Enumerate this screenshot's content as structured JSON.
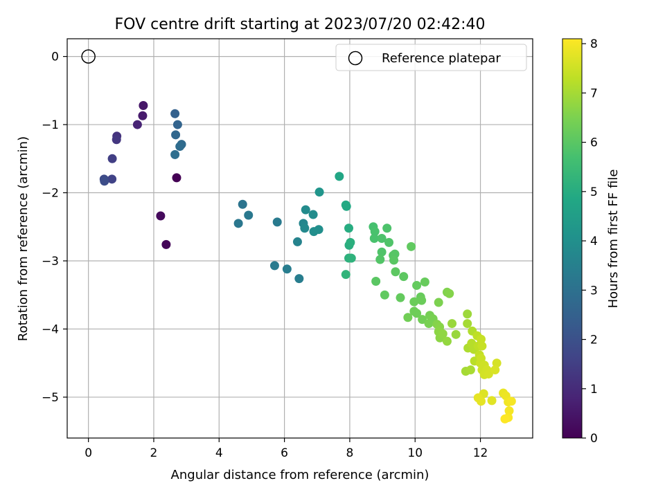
{
  "chart_data": {
    "type": "scatter",
    "title": "FOV centre drift starting at 2023/07/20 02:42:40",
    "xlabel": "Angular distance from reference (arcmin)",
    "ylabel": "Rotation from reference (arcmin)",
    "xlim": [
      -0.65,
      13.6
    ],
    "ylim": [
      -5.6,
      0.26
    ],
    "xticks": [
      0,
      2,
      4,
      6,
      8,
      10,
      12
    ],
    "yticks": [
      0,
      -1,
      -2,
      -3,
      -4,
      -5
    ],
    "grid": true,
    "legend": {
      "placement": "top-right",
      "entries": [
        "Reference platepar"
      ]
    },
    "reference_point": {
      "x": 0,
      "y": 0,
      "label": "Reference platepar"
    },
    "colorbar": {
      "label": "Hours from first FF file",
      "colormap": "viridis",
      "range": [
        0,
        8.1
      ],
      "ticks": [
        0,
        1,
        2,
        3,
        4,
        5,
        6,
        7,
        8
      ]
    },
    "series": [
      {
        "points": [
          [
            2.7,
            -1.78,
            0.0
          ],
          [
            2.38,
            -2.76,
            0.1
          ],
          [
            2.21,
            -2.34,
            0.2
          ],
          [
            1.68,
            -0.72,
            0.5
          ],
          [
            1.66,
            -0.87,
            0.6
          ],
          [
            1.5,
            -1.0,
            0.8
          ],
          [
            0.87,
            -1.17,
            1.2
          ],
          [
            0.86,
            -1.22,
            1.3
          ],
          [
            0.73,
            -1.5,
            1.5
          ],
          [
            0.72,
            -1.8,
            1.6
          ],
          [
            0.48,
            -1.8,
            1.8
          ],
          [
            0.49,
            -1.83,
            1.9
          ],
          [
            2.65,
            -0.84,
            2.5
          ],
          [
            2.73,
            -1.0,
            2.6
          ],
          [
            2.67,
            -1.15,
            2.7
          ],
          [
            2.85,
            -1.29,
            2.8
          ],
          [
            2.8,
            -1.32,
            2.85
          ],
          [
            2.65,
            -1.44,
            2.9
          ],
          [
            4.72,
            -2.17,
            3.1
          ],
          [
            4.59,
            -2.45,
            3.2
          ],
          [
            4.9,
            -2.33,
            3.25
          ],
          [
            5.78,
            -2.43,
            3.3
          ],
          [
            5.7,
            -3.07,
            3.3
          ],
          [
            6.08,
            -3.12,
            3.4
          ],
          [
            6.45,
            -3.26,
            3.4
          ],
          [
            6.4,
            -2.72,
            3.6
          ],
          [
            6.58,
            -2.45,
            3.7
          ],
          [
            6.62,
            -2.52,
            3.8
          ],
          [
            6.65,
            -2.25,
            3.85
          ],
          [
            6.88,
            -2.32,
            3.9
          ],
          [
            6.9,
            -2.57,
            3.95
          ],
          [
            7.05,
            -2.54,
            4.0
          ],
          [
            7.07,
            -1.99,
            4.2
          ],
          [
            7.68,
            -1.76,
            4.8
          ],
          [
            7.9,
            -2.2,
            4.85
          ],
          [
            7.88,
            -2.18,
            4.9
          ],
          [
            7.97,
            -2.52,
            5.0
          ],
          [
            7.98,
            -2.77,
            5.05
          ],
          [
            8.02,
            -2.73,
            5.1
          ],
          [
            7.97,
            -2.96,
            5.15
          ],
          [
            8.05,
            -2.96,
            5.2
          ],
          [
            7.88,
            -3.2,
            5.25
          ],
          [
            8.72,
            -2.5,
            5.7
          ],
          [
            8.77,
            -2.57,
            5.75
          ],
          [
            8.75,
            -2.67,
            5.75
          ],
          [
            8.98,
            -2.67,
            5.8
          ],
          [
            9.14,
            -2.52,
            5.8
          ],
          [
            9.2,
            -2.73,
            5.85
          ],
          [
            8.98,
            -2.87,
            5.85
          ],
          [
            8.93,
            -2.98,
            5.9
          ],
          [
            9.33,
            -2.92,
            5.95
          ],
          [
            9.38,
            -2.9,
            5.95
          ],
          [
            9.35,
            -2.99,
            6.0
          ],
          [
            8.8,
            -3.3,
            6.0
          ],
          [
            9.4,
            -3.16,
            6.05
          ],
          [
            9.65,
            -3.23,
            6.05
          ],
          [
            9.88,
            -2.79,
            6.1
          ],
          [
            9.07,
            -3.5,
            6.1
          ],
          [
            9.55,
            -3.54,
            6.15
          ],
          [
            10.05,
            -3.36,
            6.15
          ],
          [
            10.3,
            -3.31,
            6.2
          ],
          [
            10.17,
            -3.53,
            6.2
          ],
          [
            10.2,
            -3.58,
            6.25
          ],
          [
            9.97,
            -3.6,
            6.25
          ],
          [
            9.97,
            -3.74,
            6.3
          ],
          [
            10.05,
            -3.77,
            6.3
          ],
          [
            9.78,
            -3.83,
            6.35
          ],
          [
            10.22,
            -3.86,
            6.35
          ],
          [
            10.45,
            -3.8,
            6.4
          ],
          [
            10.55,
            -3.85,
            6.45
          ],
          [
            10.42,
            -3.92,
            6.45
          ],
          [
            10.72,
            -3.61,
            6.5
          ],
          [
            10.98,
            -3.46,
            6.55
          ],
          [
            11.05,
            -3.48,
            6.6
          ],
          [
            10.67,
            -3.93,
            6.6
          ],
          [
            10.75,
            -3.97,
            6.65
          ],
          [
            10.72,
            -4.04,
            6.7
          ],
          [
            10.76,
            -4.13,
            6.7
          ],
          [
            10.85,
            -4.07,
            6.75
          ],
          [
            10.98,
            -4.18,
            6.8
          ],
          [
            11.13,
            -3.92,
            6.85
          ],
          [
            11.25,
            -4.08,
            6.85
          ],
          [
            11.6,
            -3.78,
            6.9
          ],
          [
            11.6,
            -3.92,
            7.0
          ],
          [
            11.55,
            -4.62,
            7.0
          ],
          [
            11.7,
            -4.6,
            7.05
          ],
          [
            11.62,
            -4.28,
            7.1
          ],
          [
            11.75,
            -4.03,
            7.15
          ],
          [
            11.73,
            -4.21,
            7.2
          ],
          [
            11.8,
            -4.3,
            7.2
          ],
          [
            11.82,
            -4.47,
            7.25
          ],
          [
            11.9,
            -4.1,
            7.3
          ],
          [
            11.93,
            -4.25,
            7.3
          ],
          [
            11.97,
            -4.38,
            7.35
          ],
          [
            12.02,
            -4.15,
            7.4
          ],
          [
            12.05,
            -4.25,
            7.4
          ],
          [
            12.0,
            -4.5,
            7.45
          ],
          [
            12.02,
            -4.43,
            7.45
          ],
          [
            12.12,
            -4.53,
            7.5
          ],
          [
            12.05,
            -4.6,
            7.5
          ],
          [
            12.12,
            -4.67,
            7.55
          ],
          [
            12.2,
            -4.6,
            7.55
          ],
          [
            12.25,
            -4.66,
            7.6
          ],
          [
            12.5,
            -4.5,
            7.6
          ],
          [
            12.45,
            -4.6,
            7.65
          ],
          [
            12.1,
            -4.95,
            7.7
          ],
          [
            12.35,
            -5.05,
            7.75
          ],
          [
            11.93,
            -5.01,
            7.8
          ],
          [
            12.02,
            -5.06,
            7.8
          ],
          [
            12.7,
            -4.94,
            7.85
          ],
          [
            12.78,
            -4.98,
            7.9
          ],
          [
            12.85,
            -5.07,
            7.95
          ],
          [
            12.95,
            -5.06,
            8.0
          ],
          [
            12.88,
            -5.2,
            8.0
          ],
          [
            12.85,
            -5.3,
            8.05
          ],
          [
            12.75,
            -5.32,
            8.1
          ]
        ]
      }
    ]
  }
}
